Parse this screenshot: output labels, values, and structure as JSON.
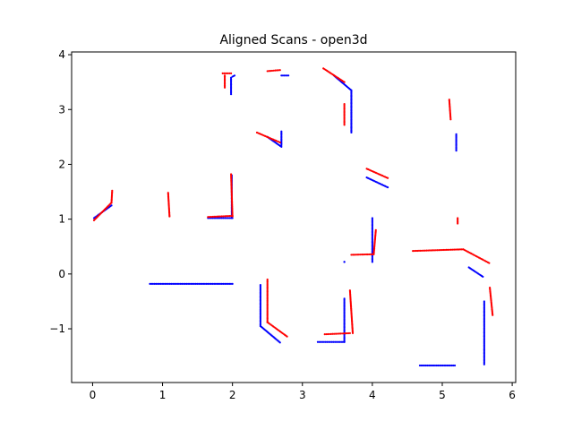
{
  "chart_data": {
    "type": "scatter",
    "title": "Aligned Scans - open3d",
    "xlabel": "",
    "ylabel": "",
    "xlim": [
      -0.3,
      6.05
    ],
    "ylim": [
      -1.98,
      4.05
    ],
    "x_ticks": [
      0,
      1,
      2,
      3,
      4,
      5,
      6
    ],
    "y_ticks": [
      -1,
      0,
      1,
      2,
      3,
      4
    ],
    "x_tick_labels": [
      "0",
      "1",
      "2",
      "3",
      "4",
      "5",
      "6"
    ],
    "y_tick_labels": [
      "−1",
      "0",
      "1",
      "2",
      "3",
      "4"
    ],
    "grid": false,
    "legend": "none",
    "series": [
      {
        "color": "#0000ff",
        "segments": [
          [
            [
              0.02,
              1.02
            ],
            [
              0.27,
              1.25
            ]
          ],
          [
            [
              0.82,
              -0.18
            ],
            [
              2.0,
              -0.18
            ]
          ],
          [
            [
              1.65,
              1.02
            ],
            [
              2.0,
              1.02
            ]
          ],
          [
            [
              1.99,
              1.02
            ],
            [
              1.99,
              1.8
            ]
          ],
          [
            [
              1.98,
              3.28
            ],
            [
              1.98,
              3.58
            ]
          ],
          [
            [
              2.0,
              3.6
            ],
            [
              2.03,
              3.62
            ]
          ],
          [
            [
              2.5,
              2.5
            ],
            [
              2.7,
              2.32
            ]
          ],
          [
            [
              2.7,
              2.6
            ],
            [
              2.7,
              2.35
            ]
          ],
          [
            [
              2.7,
              3.62
            ],
            [
              2.8,
              3.62
            ]
          ],
          [
            [
              3.45,
              3.62
            ],
            [
              3.7,
              3.35
            ]
          ],
          [
            [
              3.7,
              3.35
            ],
            [
              3.7,
              2.58
            ]
          ],
          [
            [
              2.4,
              -0.2
            ],
            [
              2.4,
              -0.95
            ]
          ],
          [
            [
              2.4,
              -0.95
            ],
            [
              2.68,
              -1.25
            ]
          ],
          [
            [
              3.22,
              -1.24
            ],
            [
              3.6,
              -1.24
            ]
          ],
          [
            [
              3.6,
              -0.45
            ],
            [
              3.6,
              -1.24
            ]
          ],
          [
            [
              3.92,
              1.76
            ],
            [
              4.22,
              1.58
            ]
          ],
          [
            [
              3.6,
              0.22
            ],
            [
              3.6,
              0.22
            ]
          ],
          [
            [
              4.0,
              0.22
            ],
            [
              4.0,
              1.02
            ]
          ],
          [
            [
              4.68,
              -1.67
            ],
            [
              5.18,
              -1.67
            ]
          ],
          [
            [
              5.2,
              2.55
            ],
            [
              5.2,
              2.25
            ]
          ],
          [
            [
              5.38,
              0.12
            ],
            [
              5.58,
              -0.05
            ]
          ],
          [
            [
              5.6,
              -0.5
            ],
            [
              5.6,
              -1.65
            ]
          ]
        ]
      },
      {
        "color": "#ff0000",
        "segments": [
          [
            [
              0.02,
              0.98
            ],
            [
              0.27,
              1.3
            ]
          ],
          [
            [
              0.27,
              1.3
            ],
            [
              0.28,
              1.52
            ]
          ],
          [
            [
              1.08,
              1.48
            ],
            [
              1.1,
              1.05
            ]
          ],
          [
            [
              1.65,
              1.04
            ],
            [
              2.0,
              1.06
            ]
          ],
          [
            [
              1.98,
              1.82
            ],
            [
              2.0,
              1.05
            ]
          ],
          [
            [
              1.86,
              3.66
            ],
            [
              1.98,
              3.66
            ]
          ],
          [
            [
              1.89,
              3.4
            ],
            [
              1.89,
              3.62
            ]
          ],
          [
            [
              2.5,
              3.7
            ],
            [
              2.68,
              3.72
            ]
          ],
          [
            [
              2.35,
              2.58
            ],
            [
              2.68,
              2.4
            ]
          ],
          [
            [
              3.3,
              3.75
            ],
            [
              3.6,
              3.5
            ]
          ],
          [
            [
              3.6,
              3.1
            ],
            [
              3.6,
              2.72
            ]
          ],
          [
            [
              2.5,
              -0.1
            ],
            [
              2.5,
              -0.88
            ]
          ],
          [
            [
              2.5,
              -0.88
            ],
            [
              2.78,
              -1.14
            ]
          ],
          [
            [
              3.32,
              -1.1
            ],
            [
              3.68,
              -1.08
            ]
          ],
          [
            [
              3.68,
              -0.3
            ],
            [
              3.72,
              -1.08
            ]
          ],
          [
            [
              3.92,
              1.92
            ],
            [
              4.22,
              1.75
            ]
          ],
          [
            [
              3.7,
              0.35
            ],
            [
              4.02,
              0.36
            ]
          ],
          [
            [
              4.02,
              0.36
            ],
            [
              4.05,
              0.8
            ]
          ],
          [
            [
              4.58,
              0.42
            ],
            [
              5.3,
              0.45
            ]
          ],
          [
            [
              5.3,
              0.45
            ],
            [
              5.67,
              0.2
            ]
          ],
          [
            [
              5.22,
              1.02
            ],
            [
              5.22,
              0.92
            ]
          ],
          [
            [
              5.1,
              3.18
            ],
            [
              5.12,
              2.82
            ]
          ],
          [
            [
              5.68,
              -0.25
            ],
            [
              5.72,
              -0.75
            ]
          ]
        ]
      }
    ]
  }
}
